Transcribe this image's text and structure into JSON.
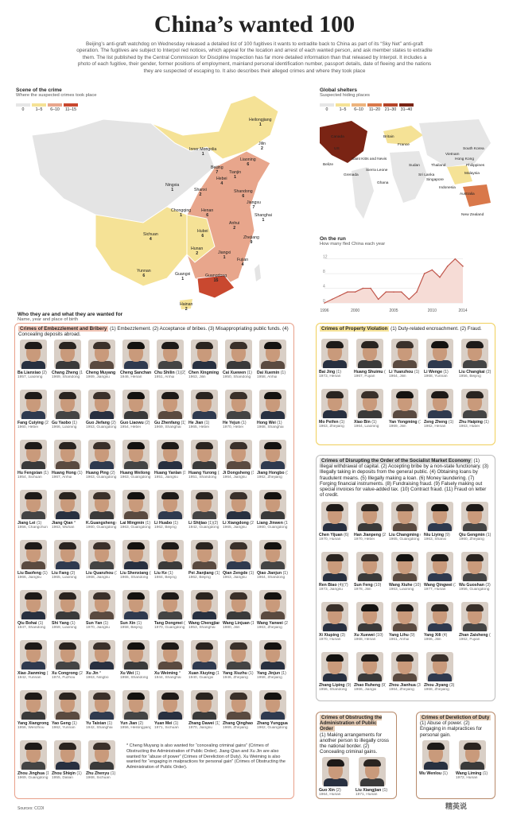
{
  "title": "China’s wanted 100",
  "intro": "Beijing’s anti-graft watchdog on Wednesday released a detailed list of 100 fugitives it wants to extradite back to China as part of its “Sky Net” anti-graft operation. The fugitives are subject to Interpol red notices, which appeal for the location and arrest of each wanted person, and ask member states to extradite them. The list published by the Central Commission for Discipline Inspection has far more detailed information than that released by Interpol. It includes a photo of each fugitive, their gender, former positions of employment, mainland personal identification number, passport details, date of fleeing and the nations they are suspected of escaping to. It also describes their alleged crimes and where they took place",
  "china_map": {
    "title": "Scene of the crime",
    "subtitle": "Where the suspected crimes took place",
    "legend": [
      "0",
      "1–5",
      "6–10",
      "11–15"
    ],
    "legend_colors": [
      "#e6e6e6",
      "#f5e296",
      "#e8a68c",
      "#c9482f"
    ],
    "provinces": [
      {
        "name": "Heilongjiang",
        "count": "1"
      },
      {
        "name": "Jilin",
        "count": "2"
      },
      {
        "name": "Inner Mongolia",
        "count": "1"
      },
      {
        "name": "Liaoning",
        "count": "6"
      },
      {
        "name": "Beijing",
        "count": "7"
      },
      {
        "name": "Tianjin",
        "count": "1"
      },
      {
        "name": "Hebei",
        "count": "4"
      },
      {
        "name": "Shanxi",
        "count": "2"
      },
      {
        "name": "Shandong",
        "count": "6"
      },
      {
        "name": "Ningxia",
        "count": "1"
      },
      {
        "name": "Jiangsu",
        "count": "7"
      },
      {
        "name": "Henan",
        "count": "6"
      },
      {
        "name": "Anhui",
        "count": "2"
      },
      {
        "name": "Shanghai",
        "count": "1"
      },
      {
        "name": "Chongqing",
        "count": "1"
      },
      {
        "name": "Hubei",
        "count": "6"
      },
      {
        "name": "Zhejiang",
        "count": "9"
      },
      {
        "name": "Sichuan",
        "count": "4"
      },
      {
        "name": "Hunan",
        "count": "2"
      },
      {
        "name": "Jiangxi",
        "count": "1"
      },
      {
        "name": "Fujian",
        "count": "4"
      },
      {
        "name": "Yunnan",
        "count": "6"
      },
      {
        "name": "Guangxi",
        "count": "1"
      },
      {
        "name": "Guangdong",
        "count": "15"
      },
      {
        "name": "Hainan",
        "count": "2"
      }
    ]
  },
  "world_map": {
    "title": "Global shelters",
    "subtitle": "Suspected hiding places",
    "legend": [
      "0",
      "1–5",
      "6–10",
      "11–20",
      "21–30",
      "31–40"
    ],
    "legend_colors": [
      "#e6e6e6",
      "#f5e296",
      "#edb47e",
      "#d9784a",
      "#b5452a",
      "#7a2414"
    ],
    "countries": [
      {
        "name": "Canada"
      },
      {
        "name": "US"
      },
      {
        "name": "Britain"
      },
      {
        "name": "France"
      },
      {
        "name": "Saint Kitts and Nevis"
      },
      {
        "name": "Belize"
      },
      {
        "name": "Grenada"
      },
      {
        "name": "Sierra Leone"
      },
      {
        "name": "Ghana"
      },
      {
        "name": "Sudan"
      },
      {
        "name": "Vietnam"
      },
      {
        "name": "South Korea"
      },
      {
        "name": "Thailand"
      },
      {
        "name": "Hong Kong"
      },
      {
        "name": "Philippines"
      },
      {
        "name": "Malaysia"
      },
      {
        "name": "Sri Lanka"
      },
      {
        "name": "Singapore"
      },
      {
        "name": "Indonesia"
      },
      {
        "name": "Australia"
      },
      {
        "name": "New Zealand"
      }
    ]
  },
  "chart_data": {
    "type": "line",
    "title": "On the run",
    "subtitle": "How many fled China each year",
    "x": [
      1996,
      1997,
      1998,
      1999,
      2000,
      2001,
      2002,
      2003,
      2004,
      2005,
      2006,
      2007,
      2008,
      2009,
      2010,
      2011,
      2012,
      2013,
      2014
    ],
    "values": [
      0,
      1,
      2,
      3,
      3,
      4,
      4,
      1,
      3,
      3,
      3,
      1,
      3,
      8,
      9,
      7,
      10,
      12,
      10
    ],
    "xticks": [
      "1996",
      "2000",
      "2005",
      "2010",
      "2014"
    ],
    "yticks": [
      "0",
      "4",
      "8",
      "12"
    ],
    "ylim": [
      0,
      13
    ],
    "line_color": "#c0554a"
  },
  "section_label": {
    "title": "Who they are and what they are wanted for",
    "subtitle": "Name, year and place of birth"
  },
  "embezzlement": {
    "heading": "Crimes of Embezzlement and Bribery",
    "desc": "(1) Embezzlement. (2) Acceptance of bribes. (3) Misappropriating public funds. (4) Concealing deposits abroad.",
    "people": [
      {
        "name": "Ba Lianxiao",
        "code": "(2)",
        "info": "1957, Liaoning"
      },
      {
        "name": "Chang Zheng",
        "code": "(1)",
        "info": "1969, Shandong"
      },
      {
        "name": "Cheng Muyang",
        "code": "(1)",
        "info": "1969, Jiangsu"
      },
      {
        "name": "Cheng Sanchang",
        "code": "(1)",
        "info": "1946, Henan"
      },
      {
        "name": "Chu Shilin",
        "code": "(1)(2)",
        "info": "1951, Anhui"
      },
      {
        "name": "Chen Xingming",
        "code": "(3)",
        "info": "1963, Jilin"
      },
      {
        "name": "Cai Xuewen",
        "code": "(1)",
        "info": "1950, Shandong"
      },
      {
        "name": "Dai Xuemin",
        "code": "(1)",
        "info": "1958, Anhui"
      },
      {
        "name": "Fang Cuiying",
        "code": "(2)",
        "info": "1960, Hebei"
      },
      {
        "name": "Gu Yaobo",
        "code": "(1)",
        "info": "1966, Liaoning"
      },
      {
        "name": "Guo Jiefang",
        "code": "(2)",
        "info": "1953, Guangdong"
      },
      {
        "name": "Guo Liaowu",
        "code": "(2)",
        "info": "1954, Hebei"
      },
      {
        "name": "Gu Zhenfang",
        "code": "(1)",
        "info": "1969, Shanghai"
      },
      {
        "name": "He Jian",
        "code": "(1)",
        "info": "1965, Hebei"
      },
      {
        "name": "He Yejun",
        "code": "(1)",
        "info": "1970, Hebei"
      },
      {
        "name": "Hong Wei",
        "code": "(1)",
        "info": "1968, Shanghai"
      },
      {
        "name": "Hu Fengxian",
        "code": "(1)",
        "info": "1954, Sichuan"
      },
      {
        "name": "Huang Hong",
        "code": "(1)",
        "info": "1967, Anhui"
      },
      {
        "name": "Huang Ping",
        "code": "(2)",
        "info": "1963, Guangdong"
      },
      {
        "name": "Huang Weilong",
        "code": "(1)",
        "info": "1963, Guangdong"
      },
      {
        "name": "Huang Yanlan",
        "code": "(1)",
        "info": "1951, Jiangsu"
      },
      {
        "name": "Huang Yurong",
        "code": "(2)",
        "info": "1951, Shandong"
      },
      {
        "name": "Ji Dongsheng",
        "code": "(1)",
        "info": "1964, Jiangsu"
      },
      {
        "name": "Jiang Hongbo",
        "code": "(1)",
        "info": "1962, Zhejiang"
      },
      {
        "name": "Jiang Lei",
        "code": "(1)",
        "info": "1956, Changchun"
      },
      {
        "name": "Jiang Qian",
        "code": "*",
        "info": "1963, Wuhan"
      },
      {
        "name": "K.Guangsheng",
        "code": "(1)",
        "info": "1960, Guangdong"
      },
      {
        "name": "Lai Mingmin",
        "code": "(1)",
        "info": "1963, Guangdong"
      },
      {
        "name": "Li Huabo",
        "code": "(1)",
        "info": "1962, Beijing"
      },
      {
        "name": "Li Shijiao",
        "code": "(1)(2)",
        "info": "1942, Guangdong"
      },
      {
        "name": "Li Xiangdong",
        "code": "(2)",
        "info": "1965, Jiangsu"
      },
      {
        "name": "Liang Jinwen",
        "code": "(1)",
        "info": "1960, Guangdong"
      },
      {
        "name": "Liu Baofeng",
        "code": "(1)",
        "info": "1966, Jiangsu"
      },
      {
        "name": "Liu Fang",
        "code": "(2)",
        "info": "1965, Liaoning"
      },
      {
        "name": "Liu Quanzhou",
        "code": "(1)",
        "info": "1968, Jiangsu"
      },
      {
        "name": "Liu Shenxiang",
        "code": "(1)",
        "info": "1965, Shandong"
      },
      {
        "name": "Liu Ke",
        "code": "(1)",
        "info": "1984, Beijing"
      },
      {
        "name": "Pei Jianjiang",
        "code": "(1)",
        "info": "1962, Beijing"
      },
      {
        "name": "Qian Zengde",
        "code": "(1)",
        "info": "1963, Jiangsu"
      },
      {
        "name": "Qiao Jianjun",
        "code": "(1)(3)",
        "info": "1964, Shandong"
      },
      {
        "name": "Qiu Bohai",
        "code": "(1)",
        "info": "1947, Shandong"
      },
      {
        "name": "Shi Yang",
        "code": "(1)",
        "info": "1959, Liaoning"
      },
      {
        "name": "Sun Yan",
        "code": "(1)",
        "info": "1970, Jiangsu"
      },
      {
        "name": "Sun Xin",
        "code": "(1)",
        "info": "1958, Beijing"
      },
      {
        "name": "Tang Dongmei",
        "code": "(1)",
        "info": "1970, Guangdong"
      },
      {
        "name": "Wang Chengjian",
        "code": "(1)",
        "info": "1953, Shanghai"
      },
      {
        "name": "Wang Linjuan",
        "code": "(1)",
        "info": "1980, Jilin"
      },
      {
        "name": "Wang Yanwei",
        "code": "(2)",
        "info": "1963, Zhejiang"
      },
      {
        "name": "Xiao Jianming",
        "code": "(1)",
        "info": "1942, Yunnan"
      },
      {
        "name": "Xu Congrong",
        "code": "(2)",
        "info": "1974, Fuzhou"
      },
      {
        "name": "Xu Jin",
        "code": "*",
        "info": "1963, Ningbo"
      },
      {
        "name": "Xu Wei",
        "code": "(1)",
        "info": "1958, Shandong"
      },
      {
        "name": "Xu Weiming",
        "code": "*",
        "info": "1944, Shanghai"
      },
      {
        "name": "Xuan Xiuying",
        "code": "(1)(4)",
        "info": "1940, Guangxi"
      },
      {
        "name": "Yang Xiuzhu",
        "code": "(1)",
        "info": "1946, Zhejiang"
      },
      {
        "name": "Yang Jinjun",
        "code": "(1)",
        "info": "1958, Zhejiang"
      },
      {
        "name": "Yang Xiangrong",
        "code": "(2)",
        "info": "1956, Wenzhou"
      },
      {
        "name": "Yao Geng",
        "code": "(1)",
        "info": "1962, Yunnan"
      },
      {
        "name": "Yu Taixian",
        "code": "(1)",
        "info": "1942, Shanghai"
      },
      {
        "name": "Yun Jian",
        "code": "(2)",
        "info": "1956, Heilongjiang"
      },
      {
        "name": "Yuan Mei",
        "code": "(1)",
        "info": "1971, Sichuan"
      },
      {
        "name": "Zhang Dawei",
        "code": "(1)",
        "info": "1970, Jiangsu"
      },
      {
        "name": "Zhang Qinghao",
        "code": "(1)",
        "info": "1969, Zhejiang"
      },
      {
        "name": "Zhang Yungguang",
        "code": "(2)",
        "info": "1962, Guangdong"
      },
      {
        "name": "Zhou Jinghua",
        "code": "(1)",
        "info": "1969, Guangdong"
      },
      {
        "name": "Zhou Shiqin",
        "code": "(1)",
        "info": "1955, Dalian"
      },
      {
        "name": "Zhu Zhenyu",
        "code": "(1)",
        "info": "1968, Sichuan"
      }
    ],
    "note": "* Cheng Muyang is also wanted for “concealing criminal gains” (Crimes of Obstructing the Administration of Public Order). Jiang Qian and Xu Jin are also wanted for “abuse of power” (Crimes of Dereliction of Duty). Xu Weiming is also wanted for “engaging in malpractices for personal gain” (Crimes of Obstructing the Administration of Public Order)."
  },
  "property": {
    "heading": "Crimes of Property Violation",
    "desc": "(1) Duty-related encroachment. (2) Fraud.",
    "people": [
      {
        "name": "Bai Jing",
        "code": "(1)",
        "info": "1973, Henan"
      },
      {
        "name": "Huang Shuimu",
        "code": "(2)",
        "info": "1967, Fujian"
      },
      {
        "name": "Li Yuanzhou",
        "code": "(1)",
        "info": "1964, Jilin"
      },
      {
        "name": "Li Wenge",
        "code": "(1)",
        "info": "1968, Yunnan"
      },
      {
        "name": "Liu Changkai",
        "code": "(2)",
        "info": "1956, Beijing"
      },
      {
        "name": "Mo Peifen",
        "code": "(1)",
        "info": "1963, Zhejiang"
      },
      {
        "name": "Xiao Bin",
        "code": "(1)",
        "info": "1964, Liaoning"
      },
      {
        "name": "Yan Yongming",
        "code": "(1)",
        "info": "1969, Jilin"
      },
      {
        "name": "Zeng Zheng",
        "code": "(1)",
        "info": "1962, Henan"
      },
      {
        "name": "Zhu Haiping",
        "code": "(1)",
        "info": "1963, Hubei"
      }
    ]
  },
  "socialist": {
    "heading": "Crimes of Disrupting the Order of the Socialist Market Economy",
    "desc": "(1) Illegal withdrawal of capital. (2) Accepting bribe by a non-state functionary. (3) Illegally taking in deposits from the general public. (4) Obtaining loans by fraudulent means. (5) Illegally making a loan. (6) Money laundering. (7) Forging financial instruments. (8) Fundraising fraud. (9) Falsely making out special invoices for value-added tax. (10) Contract fraud. (11) Fraud on letter of credit.",
    "people": [
      {
        "name": "Chen Yijuan",
        "code": "(6)",
        "info": "1970, Hunan"
      },
      {
        "name": "Han Jianpeng",
        "code": "(2)",
        "info": "1970, Hebei"
      },
      {
        "name": "Liu Changming",
        "code": "(5)",
        "info": "1965, Guangdong"
      },
      {
        "name": "Niu Liying",
        "code": "(9)",
        "info": "1963, Shanxi"
      },
      {
        "name": "Qiu Gengmin",
        "code": "(1)(2)",
        "info": "1960, Zhejiang"
      },
      {
        "name": "Ren Biao",
        "code": "(4)(7)",
        "info": "1973, Jiangsu"
      },
      {
        "name": "Sun Feng",
        "code": "(10)",
        "info": "1978, Jilin"
      },
      {
        "name": "Wang Xiuhe",
        "code": "(10)",
        "info": "1963, Liaoning"
      },
      {
        "name": "Wang Qingwei",
        "code": "(1)",
        "info": "1977, Hunan"
      },
      {
        "name": "Wu Guoshan",
        "code": "(3)",
        "info": "1956, Guangdong"
      },
      {
        "name": "Xi Xiuping",
        "code": "(3)",
        "info": "1970, Hunan"
      },
      {
        "name": "Xu Xuewei",
        "code": "(10)",
        "info": "1968, Henan"
      },
      {
        "name": "Yang Lihu",
        "code": "(9)",
        "info": "1961, Anhui"
      },
      {
        "name": "Yang Xili",
        "code": "(4)",
        "info": "1966, Jilin"
      },
      {
        "name": "Zhan Zaisheng",
        "code": "(9)",
        "info": "1962, Fujian"
      },
      {
        "name": "Zhang Liping",
        "code": "(9)",
        "info": "1956, Shandong"
      },
      {
        "name": "Zhao Ruheng",
        "code": "(9)",
        "info": "1966, Jiangxi"
      },
      {
        "name": "Zhou Jianhua",
        "code": "(3)(4)",
        "info": "1964, Zhejiang"
      },
      {
        "name": "Zhou Jiyang",
        "code": "(3)",
        "info": "1968, Zhejiang"
      }
    ]
  },
  "public_order": {
    "heading": "Crimes of Obstructing the Administration of Public Order",
    "desc": "(1) Making arrangements for another person to illegally cross the national border. (2) Concealing criminal gains.",
    "people": [
      {
        "name": "Guo Xin",
        "code": "(2)",
        "info": "1964, Hunan"
      },
      {
        "name": "Liu Xiangjian",
        "code": "(1)",
        "info": "1971, Hunan"
      }
    ]
  },
  "dereliction": {
    "heading": "Crimes of Dereliction of Duty",
    "desc": "(1) Abuse of power. (2) Engaging in malpractices for personal gain.",
    "people": [
      {
        "name": "Wu Wenlou",
        "code": "(1)",
        "info": ""
      },
      {
        "name": "Wang Liming",
        "code": "(1)",
        "info": "1972, Hunan"
      }
    ]
  },
  "sources": "Sources: CCDI",
  "watermark": "精英说"
}
